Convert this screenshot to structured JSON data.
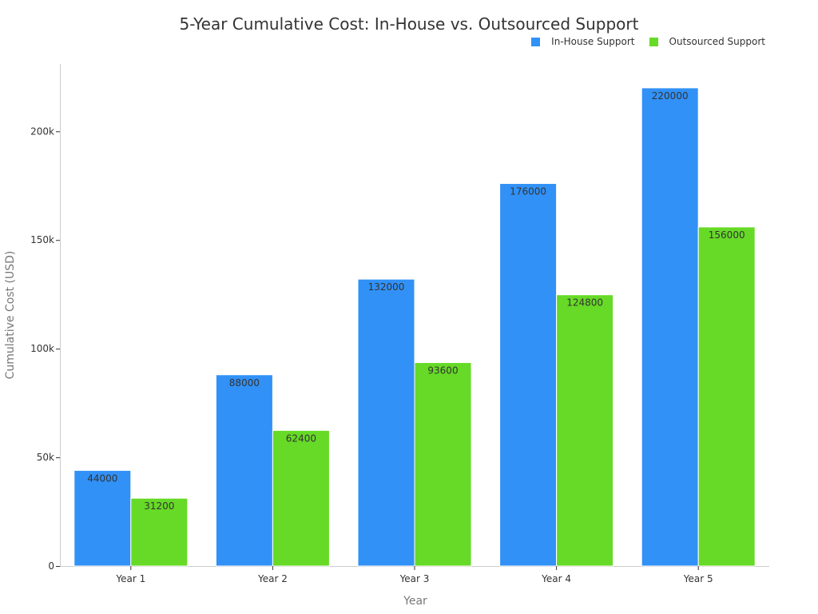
{
  "chart_data": {
    "type": "bar",
    "title": "5-Year Cumulative Cost: In-House vs. Outsourced Support",
    "xlabel": "Year",
    "ylabel": "Cumulative Cost (USD)",
    "categories": [
      "Year 1",
      "Year 2",
      "Year 3",
      "Year 4",
      "Year 5"
    ],
    "series": [
      {
        "name": "In-House Support",
        "color": "#3191f7",
        "values": [
          44000,
          88000,
          132000,
          176000,
          220000
        ]
      },
      {
        "name": "Outsourced Support",
        "color": "#66da26",
        "values": [
          31200,
          62400,
          93600,
          124800,
          156000
        ]
      }
    ],
    "ylim": [
      0,
      231000
    ],
    "yticks": [
      0,
      50000,
      100000,
      150000,
      200000
    ],
    "ytick_labels": [
      "0",
      "50k",
      "100k",
      "150k",
      "200k"
    ],
    "legend_position": "top-right",
    "grid": false
  }
}
